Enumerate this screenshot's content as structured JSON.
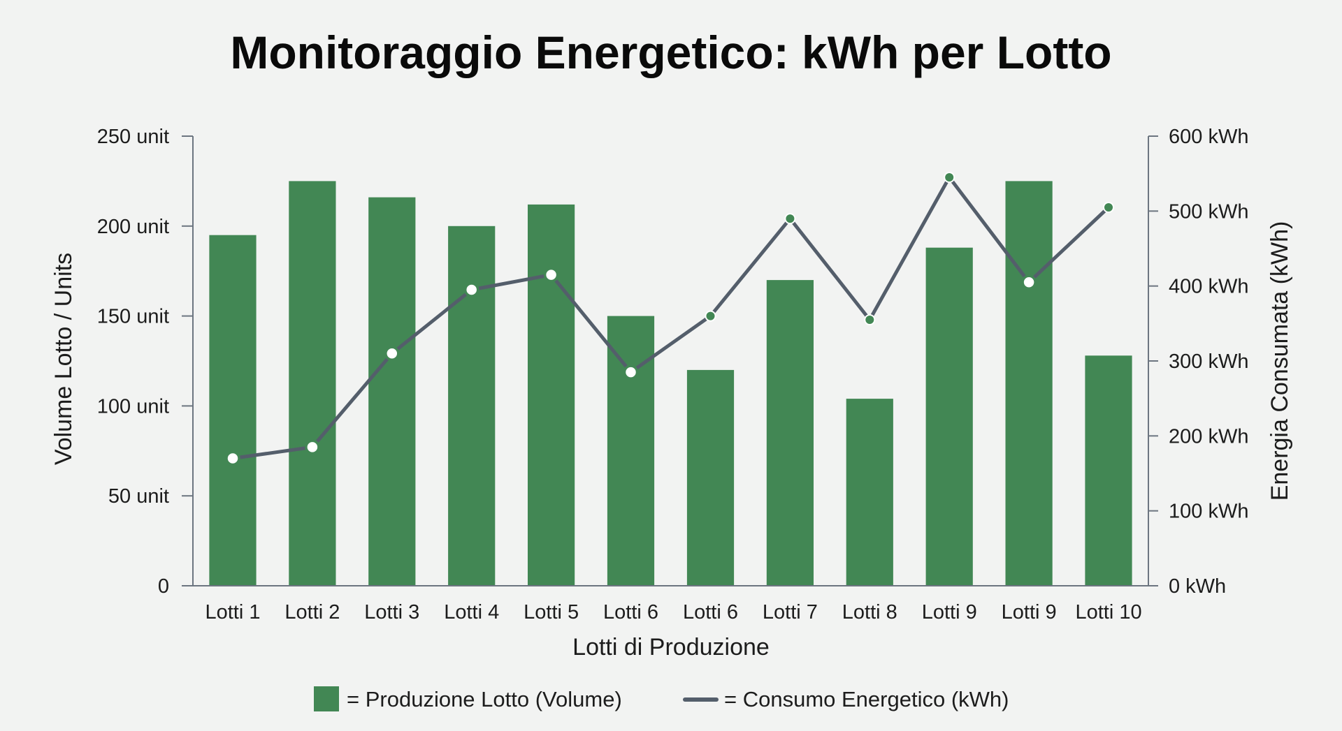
{
  "chart_data": {
    "type": "bar",
    "title": "Monitoraggio Energetico: kWh per Lotto",
    "xlabel": "Lotti di Produzione",
    "ylabel": "Volume Lotto / Units",
    "y2label": "Energia Consumata (kWh)",
    "categories": [
      "Lotti 1",
      "Lotti 2",
      "Lotti 3",
      "Lotti 4",
      "Lotti 5",
      "Lotti 6",
      "Lotti 6",
      "Lotti 7",
      "Lotti 8",
      "Lotti 9",
      "Lotti 9",
      "Lotti 10"
    ],
    "y_ticks": [
      "0",
      "50 unit",
      "100 unit",
      "150 unit",
      "200 unit",
      "250 unit"
    ],
    "y_tick_values": [
      0,
      50,
      100,
      150,
      200,
      250
    ],
    "y2_ticks": [
      "0 kWh",
      "100 kWh",
      "200 kWh",
      "300 kWh",
      "400 kWh",
      "500 kWh",
      "600 kWh"
    ],
    "y2_tick_values": [
      0,
      100,
      200,
      300,
      400,
      500,
      600
    ],
    "ylim": [
      0,
      250
    ],
    "y2lim": [
      0,
      600
    ],
    "series": [
      {
        "name": "Produzione Lotto (Volume)",
        "type": "bar",
        "axis": "left",
        "color": "#428754",
        "values": [
          195,
          225,
          216,
          200,
          212,
          150,
          120,
          170,
          104,
          188,
          225,
          128
        ]
      },
      {
        "name": "Consumo Energetico (kWh)",
        "type": "line",
        "axis": "right",
        "color": "#545e6b",
        "values": [
          170,
          185,
          310,
          395,
          415,
          285,
          360,
          490,
          355,
          545,
          405,
          505
        ],
        "marker_styles": [
          "hollow",
          "hollow",
          "hollow",
          "hollow",
          "hollow",
          "hollow",
          "filled",
          "filled",
          "filled",
          "filled",
          "hollow",
          "filled"
        ]
      }
    ],
    "legend": {
      "position": "bottom",
      "bar_label": "= Produzione Lotto (Volume)",
      "line_label": "= Consumo Energetico (kWh)"
    },
    "grid": false
  }
}
